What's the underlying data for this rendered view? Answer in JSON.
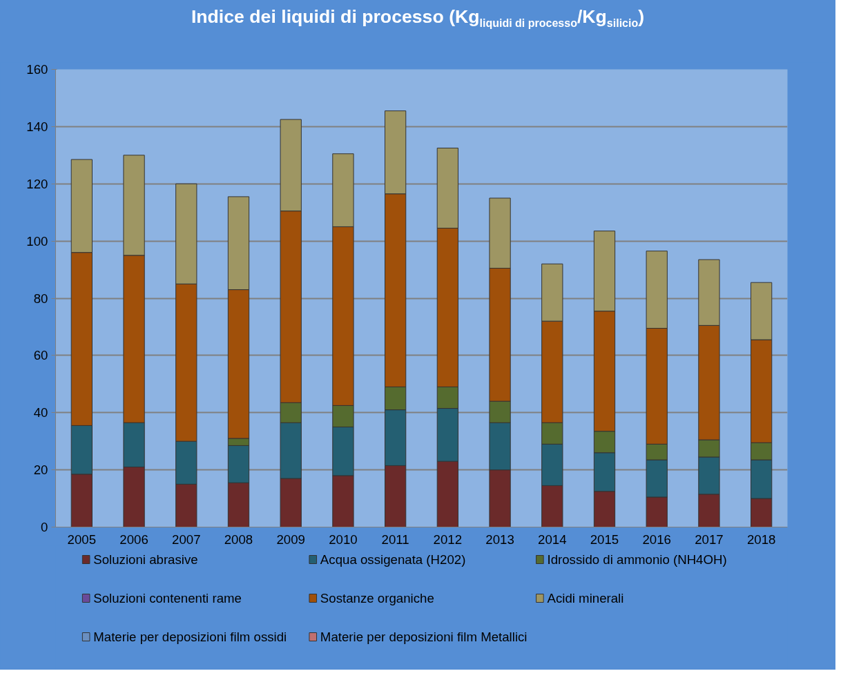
{
  "chart_data": {
    "type": "bar",
    "stacked": true,
    "title": "Indice dei liquidi di processo (Kg$_{liquidi di processo}$/Kg$_{silicio}$)",
    "categories": [
      "2005",
      "2006",
      "2007",
      "2008",
      "2009",
      "2010",
      "2011",
      "2012",
      "2013",
      "2014",
      "2015",
      "2016",
      "2017",
      "2018"
    ],
    "series": [
      {
        "name": "Soluzioni abrasive",
        "color": "#6b2a2a",
        "values": [
          18.5,
          21,
          15,
          15.5,
          17,
          18,
          21.5,
          23,
          20,
          14.5,
          12.5,
          10.5,
          11.5,
          10
        ]
      },
      {
        "name": "Acqua ossigenata (H202)",
        "color": "#245f72",
        "values": [
          17,
          15.5,
          15,
          13,
          19.5,
          17,
          19.5,
          18.5,
          16.5,
          14.5,
          13.5,
          13,
          13,
          13.5
        ]
      },
      {
        "name": "Idrossido di ammonio (NH4OH)",
        "color": "#556b2f",
        "values": [
          null,
          null,
          null,
          2.5,
          7,
          7.5,
          8,
          7.5,
          7.5,
          7.5,
          7.5,
          5.5,
          6,
          6
        ]
      },
      {
        "name": "Soluzioni contenenti rame",
        "color": "#6a4a9a",
        "values": [
          null,
          null,
          null,
          null,
          null,
          null,
          null,
          null,
          null,
          null,
          null,
          null,
          null,
          null
        ]
      },
      {
        "name": "Sostanze organiche",
        "color": "#a0500a",
        "values": [
          60.5,
          58.5,
          55,
          52,
          67,
          62.5,
          67.5,
          55.5,
          46.5,
          35.5,
          42,
          40.5,
          40,
          36
        ]
      },
      {
        "name": "Acidi minerali",
        "color": "#9e9663",
        "values": [
          32.5,
          35,
          35,
          32.5,
          32,
          25.5,
          29,
          28,
          24.5,
          20,
          28,
          27,
          23,
          20
        ]
      },
      {
        "name": "Materie per deposizioni film ossidi",
        "color": "#6a8fc0",
        "values": [
          null,
          null,
          null,
          null,
          null,
          null,
          null,
          null,
          null,
          null,
          null,
          null,
          null,
          null
        ]
      },
      {
        "name": "Materie per deposizioni film Metallici",
        "color": "#c07070",
        "values": [
          null,
          null,
          null,
          null,
          null,
          null,
          null,
          null,
          null,
          null,
          null,
          null,
          null,
          null
        ]
      }
    ],
    "ylim": [
      0,
      160
    ],
    "yticks": [
      0,
      20,
      40,
      60,
      80,
      100,
      120,
      140,
      160
    ],
    "grid": "y",
    "legend": "bottom"
  }
}
